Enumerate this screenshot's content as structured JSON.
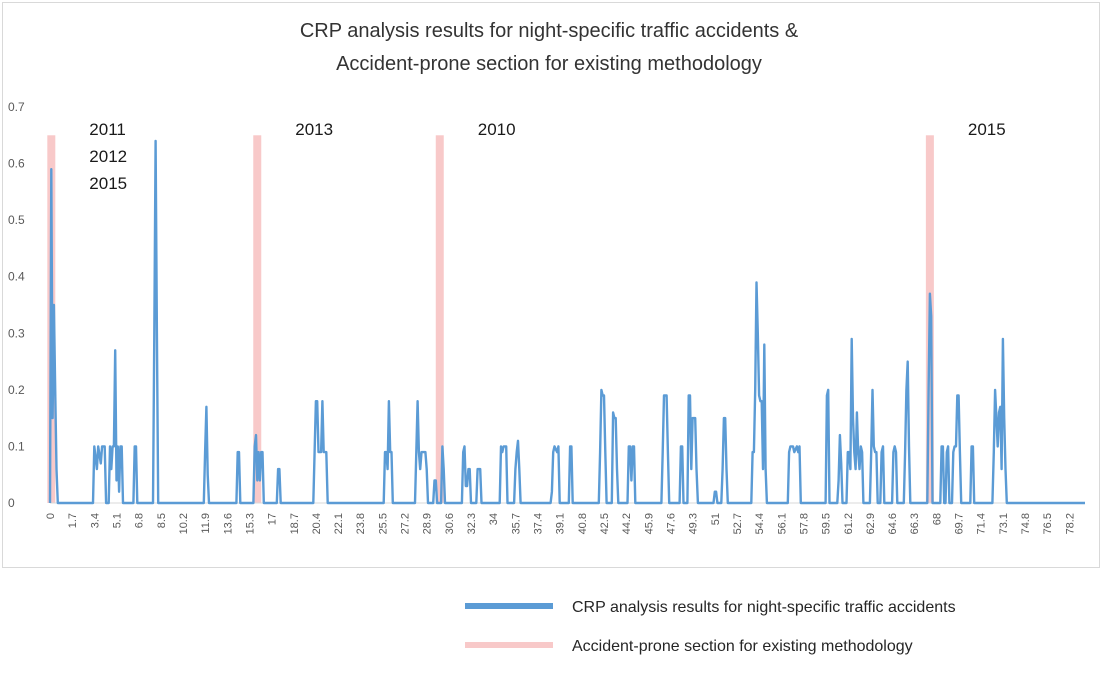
{
  "chart_data": {
    "type": "line",
    "title": [
      "CRP analysis results for night-specific traffic accidents &",
      "Accident-prone section for existing methodology"
    ],
    "xlabel": "",
    "ylabel": "",
    "ylim": [
      0,
      0.7
    ],
    "xlim": [
      0,
      79.4
    ],
    "yticks": [
      "0",
      "0.1",
      "0.2",
      "0.3",
      "0.4",
      "0.5",
      "0.6",
      "0.7"
    ],
    "xticks": [
      "0",
      "1.7",
      "3.4",
      "5.1",
      "6.8",
      "8.5",
      "10.2",
      "11.9",
      "13.6",
      "15.3",
      "17",
      "18.7",
      "20.4",
      "22.1",
      "23.8",
      "25.5",
      "27.2",
      "28.9",
      "30.6",
      "32.3",
      "34",
      "35.7",
      "37.4",
      "39.1",
      "40.8",
      "42.5",
      "44.2",
      "45.9",
      "47.6",
      "49.3",
      "51",
      "52.7",
      "54.4",
      "56.1",
      "57.8",
      "59.5",
      "61.2",
      "62.9",
      "64.6",
      "66.3",
      "68",
      "69.7",
      "71.4",
      "73.1",
      "74.8",
      "76.5",
      "78.2"
    ],
    "grid": false,
    "legend_position": "bottom-right",
    "series": [
      {
        "name": "CRP analysis results for night-specific traffic accidents",
        "color": "#5b9bd5",
        "points": [
          [
            0,
            0
          ],
          [
            0.1,
            0.59
          ],
          [
            0.2,
            0.15
          ],
          [
            0.3,
            0.35
          ],
          [
            0.4,
            0.2
          ],
          [
            0.5,
            0.06
          ],
          [
            0.6,
            0
          ],
          [
            3.3,
            0
          ],
          [
            3.4,
            0.1
          ],
          [
            3.6,
            0.06
          ],
          [
            3.7,
            0.1
          ],
          [
            3.9,
            0.07
          ],
          [
            4.0,
            0.1
          ],
          [
            4.2,
            0.1
          ],
          [
            4.3,
            0
          ],
          [
            4.5,
            0
          ],
          [
            4.6,
            0.1
          ],
          [
            4.7,
            0.06
          ],
          [
            4.8,
            0.1
          ],
          [
            4.9,
            0.1
          ],
          [
            5.0,
            0.27
          ],
          [
            5.1,
            0.04
          ],
          [
            5.2,
            0.1
          ],
          [
            5.3,
            0.02
          ],
          [
            5.4,
            0.1
          ],
          [
            5.5,
            0.1
          ],
          [
            5.6,
            0
          ],
          [
            6.4,
            0
          ],
          [
            6.5,
            0.1
          ],
          [
            6.6,
            0.1
          ],
          [
            6.7,
            0
          ],
          [
            7.9,
            0
          ],
          [
            8.0,
            0.3
          ],
          [
            8.1,
            0.64
          ],
          [
            8.2,
            0.3
          ],
          [
            8.3,
            0
          ],
          [
            11.8,
            0
          ],
          [
            11.9,
            0.09
          ],
          [
            12.0,
            0.17
          ],
          [
            12.1,
            0.05
          ],
          [
            12.2,
            0
          ],
          [
            14.3,
            0
          ],
          [
            14.4,
            0.09
          ],
          [
            14.5,
            0.09
          ],
          [
            14.6,
            0
          ],
          [
            15.6,
            0
          ],
          [
            15.7,
            0.1
          ],
          [
            15.8,
            0.12
          ],
          [
            15.9,
            0.04
          ],
          [
            16.0,
            0.09
          ],
          [
            16.1,
            0.04
          ],
          [
            16.2,
            0.09
          ],
          [
            16.3,
            0.09
          ],
          [
            16.4,
            0
          ],
          [
            17.4,
            0
          ],
          [
            17.5,
            0.06
          ],
          [
            17.6,
            0.06
          ],
          [
            17.7,
            0
          ],
          [
            20.2,
            0
          ],
          [
            20.3,
            0.09
          ],
          [
            20.4,
            0.18
          ],
          [
            20.5,
            0.18
          ],
          [
            20.6,
            0.09
          ],
          [
            20.8,
            0.09
          ],
          [
            20.9,
            0.18
          ],
          [
            21.0,
            0.09
          ],
          [
            21.2,
            0.09
          ],
          [
            21.3,
            0
          ],
          [
            25.6,
            0
          ],
          [
            25.7,
            0.09
          ],
          [
            25.8,
            0.09
          ],
          [
            25.9,
            0.06
          ],
          [
            26.0,
            0.18
          ],
          [
            26.1,
            0.09
          ],
          [
            26.2,
            0.09
          ],
          [
            26.3,
            0
          ],
          [
            28.0,
            0
          ],
          [
            28.1,
            0.09
          ],
          [
            28.2,
            0.18
          ],
          [
            28.3,
            0.09
          ],
          [
            28.4,
            0.06
          ],
          [
            28.5,
            0.09
          ],
          [
            28.8,
            0.09
          ],
          [
            28.9,
            0.06
          ],
          [
            29.0,
            0
          ],
          [
            29.4,
            0
          ],
          [
            29.5,
            0.04
          ],
          [
            29.6,
            0.04
          ],
          [
            29.7,
            0
          ],
          [
            30.0,
            0
          ],
          [
            30.1,
            0.1
          ],
          [
            30.2,
            0.06
          ],
          [
            30.3,
            0
          ],
          [
            31.6,
            0
          ],
          [
            31.7,
            0.09
          ],
          [
            31.8,
            0.1
          ],
          [
            31.9,
            0.03
          ],
          [
            32.0,
            0.03
          ],
          [
            32.1,
            0.06
          ],
          [
            32.2,
            0.06
          ],
          [
            32.3,
            0
          ],
          [
            32.7,
            0
          ],
          [
            32.8,
            0.06
          ],
          [
            33.0,
            0.06
          ],
          [
            33.1,
            0
          ],
          [
            34.5,
            0
          ],
          [
            34.6,
            0.1
          ],
          [
            34.7,
            0.09
          ],
          [
            34.8,
            0.1
          ],
          [
            35.0,
            0.1
          ],
          [
            35.1,
            0
          ],
          [
            35.6,
            0
          ],
          [
            35.7,
            0.06
          ],
          [
            35.8,
            0.09
          ],
          [
            35.9,
            0.11
          ],
          [
            36.0,
            0.06
          ],
          [
            36.1,
            0
          ],
          [
            38.4,
            0
          ],
          [
            38.5,
            0.02
          ],
          [
            38.6,
            0.09
          ],
          [
            38.7,
            0.1
          ],
          [
            38.9,
            0.09
          ],
          [
            39.0,
            0.1
          ],
          [
            39.1,
            0
          ],
          [
            39.8,
            0
          ],
          [
            39.9,
            0.1
          ],
          [
            40.0,
            0.1
          ],
          [
            40.1,
            0
          ],
          [
            42.1,
            0
          ],
          [
            42.2,
            0.09
          ],
          [
            42.3,
            0.2
          ],
          [
            42.4,
            0.19
          ],
          [
            42.5,
            0.19
          ],
          [
            42.6,
            0.09
          ],
          [
            42.7,
            0
          ],
          [
            43.1,
            0
          ],
          [
            43.2,
            0.16
          ],
          [
            43.3,
            0.15
          ],
          [
            43.4,
            0.15
          ],
          [
            43.5,
            0.06
          ],
          [
            43.6,
            0
          ],
          [
            44.3,
            0
          ],
          [
            44.4,
            0.1
          ],
          [
            44.5,
            0.1
          ],
          [
            44.6,
            0.04
          ],
          [
            44.7,
            0.1
          ],
          [
            44.8,
            0.1
          ],
          [
            44.9,
            0
          ],
          [
            46.9,
            0
          ],
          [
            47.0,
            0.09
          ],
          [
            47.1,
            0.19
          ],
          [
            47.2,
            0.19
          ],
          [
            47.3,
            0.19
          ],
          [
            47.4,
            0.09
          ],
          [
            47.5,
            0
          ],
          [
            48.3,
            0
          ],
          [
            48.4,
            0.1
          ],
          [
            48.5,
            0.1
          ],
          [
            48.6,
            0
          ],
          [
            48.9,
            0
          ],
          [
            49.0,
            0.19
          ],
          [
            49.1,
            0.19
          ],
          [
            49.2,
            0.06
          ],
          [
            49.3,
            0.15
          ],
          [
            49.4,
            0.15
          ],
          [
            49.5,
            0.15
          ],
          [
            49.6,
            0.06
          ],
          [
            49.7,
            0
          ],
          [
            50.9,
            0
          ],
          [
            51.0,
            0.02
          ],
          [
            51.1,
            0.02
          ],
          [
            51.2,
            0
          ],
          [
            51.5,
            0
          ],
          [
            51.6,
            0.06
          ],
          [
            51.7,
            0.15
          ],
          [
            51.8,
            0.15
          ],
          [
            51.9,
            0.06
          ],
          [
            52.0,
            0
          ],
          [
            53.8,
            0
          ],
          [
            53.9,
            0.09
          ],
          [
            54.0,
            0.09
          ],
          [
            54.1,
            0.2
          ],
          [
            54.2,
            0.39
          ],
          [
            54.3,
            0.3
          ],
          [
            54.4,
            0.19
          ],
          [
            54.5,
            0.18
          ],
          [
            54.6,
            0.18
          ],
          [
            54.7,
            0.06
          ],
          [
            54.8,
            0.28
          ],
          [
            54.9,
            0.06
          ],
          [
            55.0,
            0
          ],
          [
            56.6,
            0
          ],
          [
            56.7,
            0.09
          ],
          [
            56.8,
            0.1
          ],
          [
            57.0,
            0.1
          ],
          [
            57.1,
            0.09
          ],
          [
            57.3,
            0.1
          ],
          [
            57.4,
            0.09
          ],
          [
            57.5,
            0.1
          ],
          [
            57.6,
            0
          ],
          [
            59.5,
            0
          ],
          [
            59.6,
            0.19
          ],
          [
            59.7,
            0.2
          ],
          [
            59.8,
            0
          ],
          [
            60.4,
            0
          ],
          [
            60.5,
            0.04
          ],
          [
            60.6,
            0.12
          ],
          [
            60.7,
            0.07
          ],
          [
            60.8,
            0
          ],
          [
            61.1,
            0
          ],
          [
            61.2,
            0.09
          ],
          [
            61.3,
            0.09
          ],
          [
            61.4,
            0.06
          ],
          [
            61.5,
            0.29
          ],
          [
            61.6,
            0.15
          ],
          [
            61.7,
            0.09
          ],
          [
            61.8,
            0.06
          ],
          [
            61.9,
            0.16
          ],
          [
            62.0,
            0.09
          ],
          [
            62.1,
            0.06
          ],
          [
            62.2,
            0.1
          ],
          [
            62.3,
            0.09
          ],
          [
            62.4,
            0
          ],
          [
            62.9,
            0
          ],
          [
            63.0,
            0.09
          ],
          [
            63.1,
            0.2
          ],
          [
            63.2,
            0.1
          ],
          [
            63.3,
            0.09
          ],
          [
            63.4,
            0.09
          ],
          [
            63.5,
            0
          ],
          [
            63.7,
            0
          ],
          [
            63.8,
            0.09
          ],
          [
            63.9,
            0.1
          ],
          [
            64.0,
            0
          ],
          [
            64.6,
            0
          ],
          [
            64.7,
            0.09
          ],
          [
            64.8,
            0.1
          ],
          [
            64.9,
            0.09
          ],
          [
            65.0,
            0
          ],
          [
            65.5,
            0
          ],
          [
            65.6,
            0.09
          ],
          [
            65.7,
            0.2
          ],
          [
            65.8,
            0.25
          ],
          [
            65.9,
            0.1
          ],
          [
            66.0,
            0
          ],
          [
            67.3,
            0
          ],
          [
            67.4,
            0.2
          ],
          [
            67.5,
            0.37
          ],
          [
            67.6,
            0.33
          ],
          [
            67.7,
            0
          ],
          [
            68.3,
            0
          ],
          [
            68.4,
            0.1
          ],
          [
            68.5,
            0.1
          ],
          [
            68.6,
            0
          ],
          [
            68.7,
            0
          ],
          [
            68.8,
            0.09
          ],
          [
            68.9,
            0.1
          ],
          [
            69.0,
            0
          ],
          [
            69.2,
            0
          ],
          [
            69.3,
            0.09
          ],
          [
            69.4,
            0.1
          ],
          [
            69.5,
            0.1
          ],
          [
            69.6,
            0.19
          ],
          [
            69.7,
            0.19
          ],
          [
            69.8,
            0.09
          ],
          [
            69.9,
            0
          ],
          [
            70.6,
            0
          ],
          [
            70.7,
            0.1
          ],
          [
            70.8,
            0.1
          ],
          [
            70.9,
            0
          ],
          [
            72.3,
            0
          ],
          [
            72.4,
            0.09
          ],
          [
            72.5,
            0.2
          ],
          [
            72.6,
            0.15
          ],
          [
            72.7,
            0.1
          ],
          [
            72.8,
            0.16
          ],
          [
            72.9,
            0.17
          ],
          [
            73.0,
            0.06
          ],
          [
            73.1,
            0.29
          ],
          [
            73.2,
            0.15
          ],
          [
            73.3,
            0.06
          ],
          [
            73.4,
            0
          ]
        ]
      },
      {
        "name": "Accident-prone section for existing methodology",
        "color": "#f8c9c9",
        "bands": [
          0.1,
          15.9,
          29.9,
          67.5
        ],
        "ymax": 0.65
      }
    ],
    "annotations": [
      {
        "text": "2011",
        "x": 0.1,
        "row": 0
      },
      {
        "text": "2012",
        "x": 0.1,
        "row": 1
      },
      {
        "text": "2015",
        "x": 0.1,
        "row": 2
      },
      {
        "text": "2013",
        "x": 15.9,
        "row": 0
      },
      {
        "text": "2010",
        "x": 29.9,
        "row": 0
      },
      {
        "text": "2015",
        "x": 67.5,
        "row": 0
      }
    ]
  }
}
